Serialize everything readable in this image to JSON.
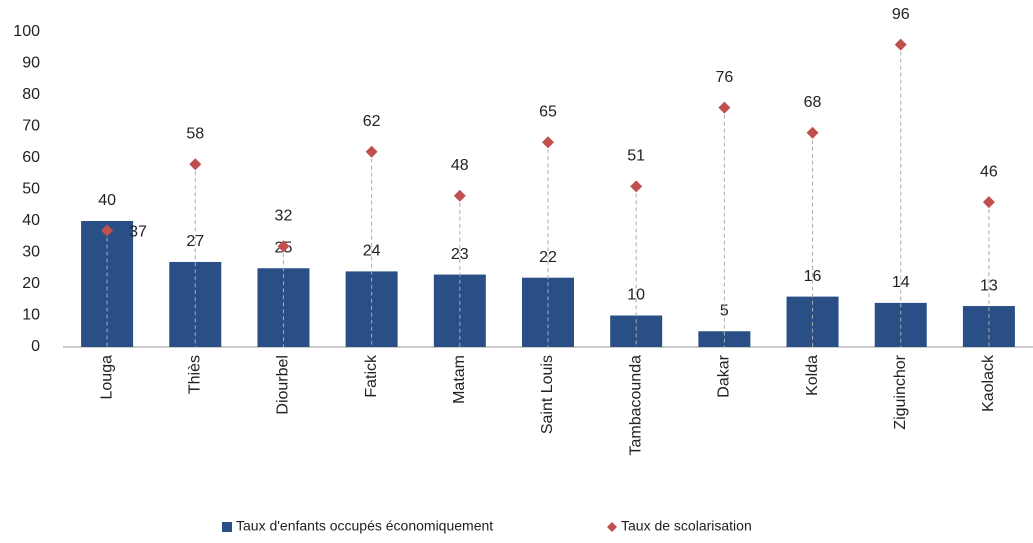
{
  "chart_data": {
    "type": "combo",
    "categories": [
      "Louga",
      "Thiès",
      "Diourbel",
      "Fatick",
      "Matam",
      "Saint Louis",
      "Tambacounda",
      "Dakar",
      "Kolda",
      "Ziguinchor",
      "Kaolack"
    ],
    "series": [
      {
        "name": "Taux d'enfants occupés économiquement",
        "type": "bar",
        "color": "#2a4f86",
        "values": [
          40,
          27,
          25,
          24,
          23,
          22,
          10,
          5,
          16,
          14,
          13
        ]
      },
      {
        "name": "Taux de scolarisation",
        "type": "scatter",
        "color": "#c0504d",
        "values": [
          37,
          58,
          32,
          62,
          48,
          65,
          51,
          76,
          68,
          96,
          46
        ]
      }
    ],
    "ylim": [
      0,
      100
    ],
    "yticks": [
      0,
      10,
      20,
      30,
      40,
      50,
      60,
      70,
      80,
      90,
      100
    ],
    "grid": false
  }
}
